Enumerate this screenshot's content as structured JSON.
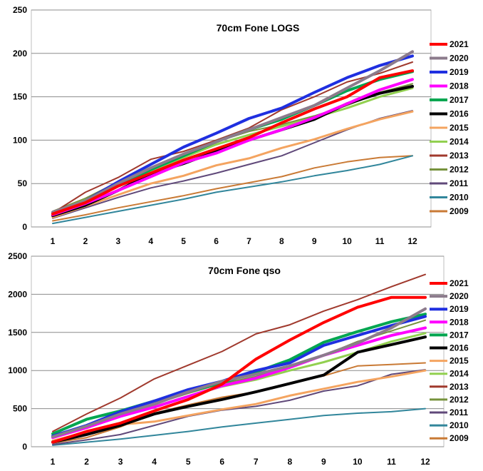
{
  "chart_data": [
    {
      "type": "line",
      "title": "70cm Fone LOGS",
      "xlabel": "",
      "ylabel": "",
      "x": [
        1,
        2,
        3,
        4,
        5,
        6,
        7,
        8,
        9,
        10,
        11,
        12
      ],
      "ylim": [
        0,
        250
      ],
      "yticks": [
        0,
        50,
        100,
        150,
        200,
        250
      ],
      "grid": "horizontal",
      "legend": "right",
      "series": [
        {
          "name": "2021",
          "color": "#ff0000",
          "width": 4,
          "values": [
            15,
            28,
            47,
            62,
            77,
            90,
            103,
            120,
            136,
            150,
            172,
            180
          ]
        },
        {
          "name": "2020",
          "color": "#8c7b8c",
          "width": 4,
          "values": [
            17,
            30,
            50,
            68,
            84,
            98,
            112,
            126,
            140,
            160,
            180,
            202
          ]
        },
        {
          "name": "2019",
          "color": "#1f2fe0",
          "width": 4,
          "values": [
            15,
            30,
            52,
            72,
            92,
            108,
            125,
            137,
            155,
            172,
            186,
            197
          ]
        },
        {
          "name": "2018",
          "color": "#ff00ff",
          "width": 4,
          "values": [
            14,
            27,
            42,
            58,
            74,
            85,
            100,
            112,
            126,
            142,
            158,
            170
          ]
        },
        {
          "name": "2017",
          "color": "#00a650",
          "width": 4,
          "values": [
            16,
            29,
            48,
            66,
            82,
            98,
            112,
            124,
            140,
            157,
            170,
            179
          ]
        },
        {
          "name": "2016",
          "color": "#000000",
          "width": 4,
          "values": [
            13,
            25,
            42,
            61,
            73,
            87,
            100,
            112,
            124,
            142,
            154,
            162
          ]
        },
        {
          "name": "2015",
          "color": "#f4a460",
          "width": 3,
          "values": [
            11,
            24,
            37,
            50,
            59,
            71,
            79,
            91,
            101,
            113,
            124,
            133
          ]
        },
        {
          "name": "2014",
          "color": "#92d050",
          "width": 3,
          "values": [
            17,
            31,
            48,
            65,
            80,
            95,
            106,
            116,
            126,
            137,
            150,
            160
          ]
        },
        {
          "name": "2013",
          "color": "#a0392d",
          "width": 2,
          "values": [
            16,
            40,
            57,
            78,
            87,
            100,
            114,
            135,
            150,
            167,
            177,
            190
          ]
        },
        {
          "name": "2012",
          "color": "#76923c",
          "width": 2,
          "values": [
            18,
            33,
            52,
            68,
            83,
            98,
            110,
            118,
            128,
            140,
            155,
            165
          ]
        },
        {
          "name": "2011",
          "color": "#60497a",
          "width": 2,
          "values": [
            10,
            22,
            34,
            45,
            53,
            62,
            72,
            82,
            97,
            112,
            125,
            134
          ]
        },
        {
          "name": "2010",
          "color": "#31869b",
          "width": 2,
          "values": [
            4,
            11,
            18,
            25,
            32,
            40,
            46,
            52,
            59,
            65,
            72,
            82
          ]
        },
        {
          "name": "2009",
          "color": "#c97a35",
          "width": 2,
          "values": [
            7,
            14,
            22,
            29,
            36,
            44,
            51,
            58,
            68,
            75,
            80,
            82
          ]
        }
      ]
    },
    {
      "type": "line",
      "title": "70cm Fone  qso",
      "xlabel": "",
      "ylabel": "",
      "x": [
        1,
        2,
        3,
        4,
        5,
        6,
        7,
        8,
        9,
        10,
        11,
        12
      ],
      "ylim": [
        0,
        2500
      ],
      "yticks": [
        0,
        500,
        1000,
        1500,
        2000,
        2500
      ],
      "grid": "horizontal",
      "legend": "right",
      "series": [
        {
          "name": "2021",
          "color": "#ff0000",
          "width": 4,
          "values": [
            60,
            200,
            310,
            470,
            620,
            820,
            1150,
            1400,
            1630,
            1830,
            1960,
            1960
          ]
        },
        {
          "name": "2020",
          "color": "#8c7b8c",
          "width": 4,
          "values": [
            130,
            270,
            430,
            560,
            720,
            860,
            950,
            1060,
            1200,
            1360,
            1560,
            1810
          ]
        },
        {
          "name": "2019",
          "color": "#1f2fe0",
          "width": 4,
          "values": [
            140,
            280,
            460,
            600,
            750,
            860,
            1000,
            1100,
            1330,
            1460,
            1590,
            1710
          ]
        },
        {
          "name": "2018",
          "color": "#ff00ff",
          "width": 4,
          "values": [
            120,
            250,
            400,
            520,
            660,
            800,
            900,
            1040,
            1200,
            1330,
            1460,
            1560
          ]
        },
        {
          "name": "2017",
          "color": "#00a650",
          "width": 4,
          "values": [
            170,
            360,
            470,
            600,
            720,
            840,
            980,
            1140,
            1370,
            1510,
            1640,
            1740
          ]
        },
        {
          "name": "2016",
          "color": "#000000",
          "width": 4,
          "values": [
            60,
            160,
            280,
            430,
            530,
            620,
            720,
            830,
            940,
            1240,
            1340,
            1440
          ]
        },
        {
          "name": "2015",
          "color": "#f4a460",
          "width": 3,
          "values": [
            80,
            190,
            290,
            330,
            410,
            490,
            560,
            670,
            760,
            850,
            920,
            1000
          ]
        },
        {
          "name": "2014",
          "color": "#92d050",
          "width": 3,
          "values": [
            150,
            270,
            410,
            530,
            660,
            790,
            880,
            1000,
            1110,
            1240,
            1380,
            1490
          ]
        },
        {
          "name": "2013",
          "color": "#a0392d",
          "width": 2,
          "values": [
            200,
            430,
            640,
            890,
            1070,
            1250,
            1480,
            1600,
            1780,
            1930,
            2100,
            2260
          ]
        },
        {
          "name": "2012",
          "color": "#76923c",
          "width": 2,
          "values": [
            140,
            280,
            430,
            560,
            700,
            830,
            920,
            1050,
            1200,
            1380,
            1520,
            1660
          ]
        },
        {
          "name": "2011",
          "color": "#60497a",
          "width": 2,
          "values": [
            30,
            90,
            160,
            280,
            400,
            480,
            530,
            610,
            730,
            800,
            950,
            1010
          ]
        },
        {
          "name": "2010",
          "color": "#31869b",
          "width": 2,
          "values": [
            20,
            60,
            100,
            150,
            200,
            260,
            310,
            360,
            410,
            440,
            460,
            500
          ]
        },
        {
          "name": "2009",
          "color": "#c97a35",
          "width": 2,
          "values": [
            50,
            120,
            260,
            440,
            550,
            650,
            720,
            830,
            930,
            1060,
            1080,
            1100
          ]
        }
      ]
    }
  ]
}
